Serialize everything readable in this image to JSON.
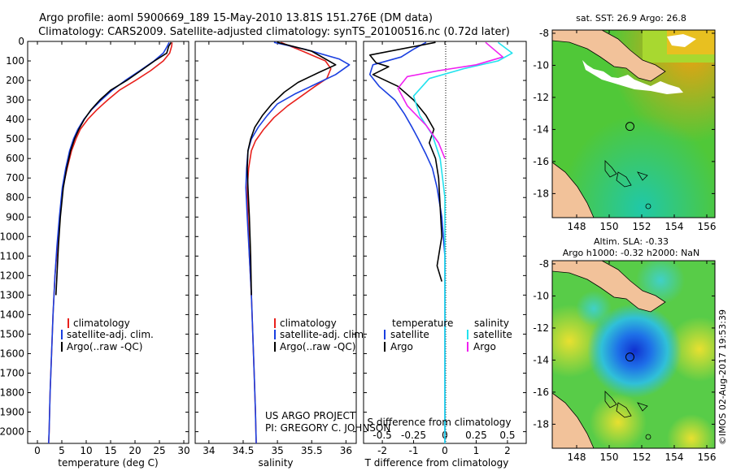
{
  "header": {
    "title_line1": "Argo profile: aoml 5900669_189 15-May-2010 13.81S 151.276E (DM data)",
    "title_line2": "Climatology: CARS2009. Satellite-adjusted climatology: synTS_20100516.nc (0.72d later)"
  },
  "colors": {
    "climatology": "#e8201c",
    "satellite": "#1a3fe0",
    "argo": "#000000",
    "sat_salinity": "#22e2ee",
    "argo_salinity": "#f020f0",
    "land": "#f2c29a"
  },
  "chart_data": [
    {
      "id": "temperature",
      "type": "line",
      "xlabel": "temperature (deg C)",
      "ylabel": "",
      "xlim": [
        -2,
        31
      ],
      "ylim": [
        2060,
        0
      ],
      "xticks": [
        0,
        5,
        10,
        15,
        20,
        25,
        30
      ],
      "xtick_labels": [
        "0",
        "5",
        "10",
        "15",
        "20",
        "25",
        "30"
      ],
      "yticks": [
        0,
        100,
        200,
        300,
        400,
        500,
        600,
        700,
        800,
        900,
        1000,
        1100,
        1200,
        1300,
        1400,
        1500,
        1600,
        1700,
        1800,
        1900,
        2000
      ],
      "ytick_labels": [
        "0",
        "100",
        "200",
        "300",
        "400",
        "500",
        "600",
        "700",
        "800",
        "900",
        "1000",
        "1100",
        "1200",
        "1300",
        "1400",
        "1500",
        "1600",
        "1700",
        "1800",
        "1900",
        "2000"
      ],
      "legend": [
        "climatology",
        "satellite-adj. clim.",
        "Argo(..raw -QC)"
      ],
      "series": [
        {
          "name": "climatology",
          "color": "#e8201c",
          "x": [
            27.6,
            27.5,
            27.1,
            25.8,
            23.2,
            20.1,
            16.8,
            14.4,
            12.2,
            10.3,
            8.8,
            7.9,
            7.0,
            6.1,
            5.2,
            4.6,
            4.1,
            3.6,
            3.2,
            2.9,
            2.6,
            2.4,
            2.3
          ],
          "y": [
            5,
            25,
            60,
            100,
            150,
            200,
            250,
            300,
            350,
            400,
            450,
            500,
            560,
            650,
            750,
            900,
            1050,
            1200,
            1400,
            1600,
            1800,
            2000,
            2060
          ]
        },
        {
          "name": "satellite-adj. clim.",
          "color": "#1a3fe0",
          "x": [
            27.0,
            26.6,
            25.8,
            23.9,
            21.0,
            18.0,
            15.3,
            13.1,
            11.1,
            9.5,
            8.3,
            7.4,
            6.6,
            5.8,
            5.1,
            4.5,
            4.0,
            3.6,
            3.2,
            2.9,
            2.6,
            2.4,
            2.3
          ],
          "y": [
            5,
            25,
            60,
            100,
            150,
            200,
            250,
            300,
            350,
            400,
            450,
            500,
            560,
            650,
            750,
            900,
            1050,
            1200,
            1400,
            1600,
            1800,
            2000,
            2060
          ]
        },
        {
          "name": "Argo(..raw -QC)",
          "color": "#000000",
          "x": [
            27.4,
            26.9,
            26.5,
            24.0,
            21.2,
            18.3,
            15.0,
            12.8,
            11.0,
            9.6,
            8.5,
            7.6,
            6.8,
            6.0,
            5.3,
            4.7,
            4.3,
            4.0,
            3.8
          ],
          "y": [
            5,
            25,
            60,
            100,
            150,
            200,
            250,
            300,
            350,
            400,
            450,
            500,
            560,
            650,
            750,
            900,
            1050,
            1200,
            1300
          ]
        }
      ]
    },
    {
      "id": "salinity",
      "type": "line",
      "xlabel": "salinity",
      "ylabel": "",
      "xlim": [
        33.8,
        36.15
      ],
      "ylim": [
        2060,
        0
      ],
      "xticks": [
        34,
        34.5,
        35,
        35.5,
        36
      ],
      "xtick_labels": [
        "34",
        "34.5",
        "35",
        "35.5",
        "36"
      ],
      "legend": [
        "climatology",
        "satellite-adj. clim.",
        "Argo(..raw -QC)"
      ],
      "annotation": [
        "US ARGO PROJECT",
        "PI: GREGORY C. JOHNSON"
      ],
      "series": [
        {
          "name": "climatology",
          "color": "#e8201c",
          "x": [
            35.05,
            35.3,
            35.7,
            35.78,
            35.72,
            35.55,
            35.35,
            35.15,
            34.95,
            34.8,
            34.68,
            34.62,
            34.58,
            34.56,
            34.57,
            34.59,
            34.62,
            34.64,
            34.66,
            34.68,
            34.69
          ],
          "y": [
            5,
            40,
            100,
            140,
            190,
            230,
            280,
            330,
            390,
            450,
            510,
            560,
            650,
            750,
            900,
            1100,
            1300,
            1500,
            1700,
            1900,
            2060
          ]
        },
        {
          "name": "satellite-adj. clim.",
          "color": "#1a3fe0",
          "x": [
            34.95,
            35.4,
            35.9,
            36.05,
            35.85,
            35.55,
            35.25,
            35.0,
            34.85,
            34.72,
            34.62,
            34.57,
            34.55,
            34.54,
            34.56,
            34.59,
            34.62,
            34.64,
            34.66,
            34.68,
            34.69
          ],
          "y": [
            5,
            40,
            90,
            120,
            170,
            220,
            270,
            320,
            380,
            440,
            500,
            560,
            650,
            750,
            900,
            1100,
            1300,
            1500,
            1700,
            1900,
            2060
          ]
        },
        {
          "name": "Argo(..raw -QC)",
          "color": "#000000",
          "x": [
            35.0,
            35.5,
            35.85,
            35.6,
            35.3,
            35.1,
            34.92,
            34.78,
            34.67,
            34.61,
            34.57,
            34.56,
            34.57,
            34.59,
            34.61,
            34.62
          ],
          "y": [
            5,
            50,
            120,
            160,
            210,
            260,
            320,
            380,
            440,
            500,
            560,
            650,
            750,
            900,
            1100,
            1300
          ]
        }
      ]
    },
    {
      "id": "difference",
      "type": "line",
      "xlabel": "T difference from climatology",
      "x2label": "S difference from climatology",
      "xlim": [
        -2.6,
        2.6
      ],
      "ylim": [
        2060,
        0
      ],
      "xticks": [
        -2,
        -1,
        0,
        1,
        2
      ],
      "xtick_labels": [
        "-2",
        "-1",
        "0",
        "1",
        "2"
      ],
      "x2ticks": [
        -2,
        -1,
        0,
        1,
        2
      ],
      "x2tick_labels": [
        "-0.5",
        "-0.25",
        "0",
        "0.25",
        "0.5"
      ],
      "legend_left_title": "temperature",
      "legend_right_title": "salinity",
      "legend_left": [
        "satellite",
        "Argo"
      ],
      "legend_right": [
        "satellite",
        "Argo"
      ],
      "series": [
        {
          "name": "T satellite",
          "color": "#1a3fe0",
          "x": [
            -0.6,
            -1.0,
            -1.4,
            -2.3,
            -2.4,
            -2.1,
            -1.6,
            -1.3,
            -1.05,
            -0.85,
            -0.6,
            -0.4,
            -0.25,
            -0.1,
            0.0,
            0.0,
            0.0,
            0.0
          ],
          "y": [
            5,
            40,
            80,
            120,
            170,
            230,
            300,
            370,
            440,
            500,
            580,
            650,
            750,
            900,
            1100,
            1300,
            1700,
            2060
          ]
        },
        {
          "name": "T Argo",
          "color": "#000000",
          "x": [
            -0.3,
            -2.4,
            -2.2,
            -1.8,
            -2.3,
            -1.5,
            -1.0,
            -0.6,
            -0.35,
            -0.5,
            -0.3,
            -0.2,
            -0.15,
            -0.1,
            -0.25,
            -0.1
          ],
          "y": [
            5,
            70,
            110,
            130,
            170,
            230,
            300,
            380,
            450,
            520,
            600,
            700,
            850,
            1000,
            1150,
            1230
          ]
        },
        {
          "name": "S satellite",
          "color": "#22e2ee",
          "x": [
            1.7,
            2.15,
            1.7,
            0.6,
            -0.5,
            -1.0,
            -0.8,
            -0.4,
            -0.15,
            0.0,
            0.0,
            0.0,
            0.0
          ],
          "y": [
            5,
            60,
            100,
            140,
            190,
            280,
            380,
            480,
            600,
            800,
            1100,
            1500,
            2060
          ]
        },
        {
          "name": "S Argo",
          "color": "#f020f0",
          "x": [
            1.3,
            1.85,
            1.0,
            -0.2,
            -1.2,
            -1.5,
            -1.2,
            -0.6,
            -0.2,
            0.0
          ],
          "y": [
            5,
            80,
            120,
            150,
            180,
            240,
            330,
            430,
            520,
            600
          ]
        }
      ]
    }
  ],
  "maps": {
    "sst": {
      "title": "sat. SST: 26.9 Argo: 26.8",
      "yticks": [
        "-8",
        "-10",
        "-12",
        "-14",
        "-16",
        "-18"
      ],
      "xticks": [
        "148",
        "150",
        "152",
        "154",
        "156"
      ],
      "lon_range": [
        146.5,
        156.5
      ],
      "lat_range": [
        -19.5,
        -7.8
      ],
      "profile_lon": 151.276,
      "profile_lat": -13.81
    },
    "sla": {
      "title_line1": "Altim. SLA: -0.33",
      "title_line2": "Argo h1000: -0.32 h2000: NaN",
      "yticks": [
        "-8",
        "-10",
        "-12",
        "-14",
        "-16",
        "-18"
      ],
      "xticks": [
        "148",
        "150",
        "152",
        "154",
        "156"
      ],
      "lon_range": [
        146.5,
        156.5
      ],
      "lat_range": [
        -19.5,
        -7.8
      ],
      "profile_lon": 151.276,
      "profile_lat": -13.81
    }
  },
  "footer": {
    "credit": "©IMOS 02-Aug-2017 19:53:39"
  }
}
